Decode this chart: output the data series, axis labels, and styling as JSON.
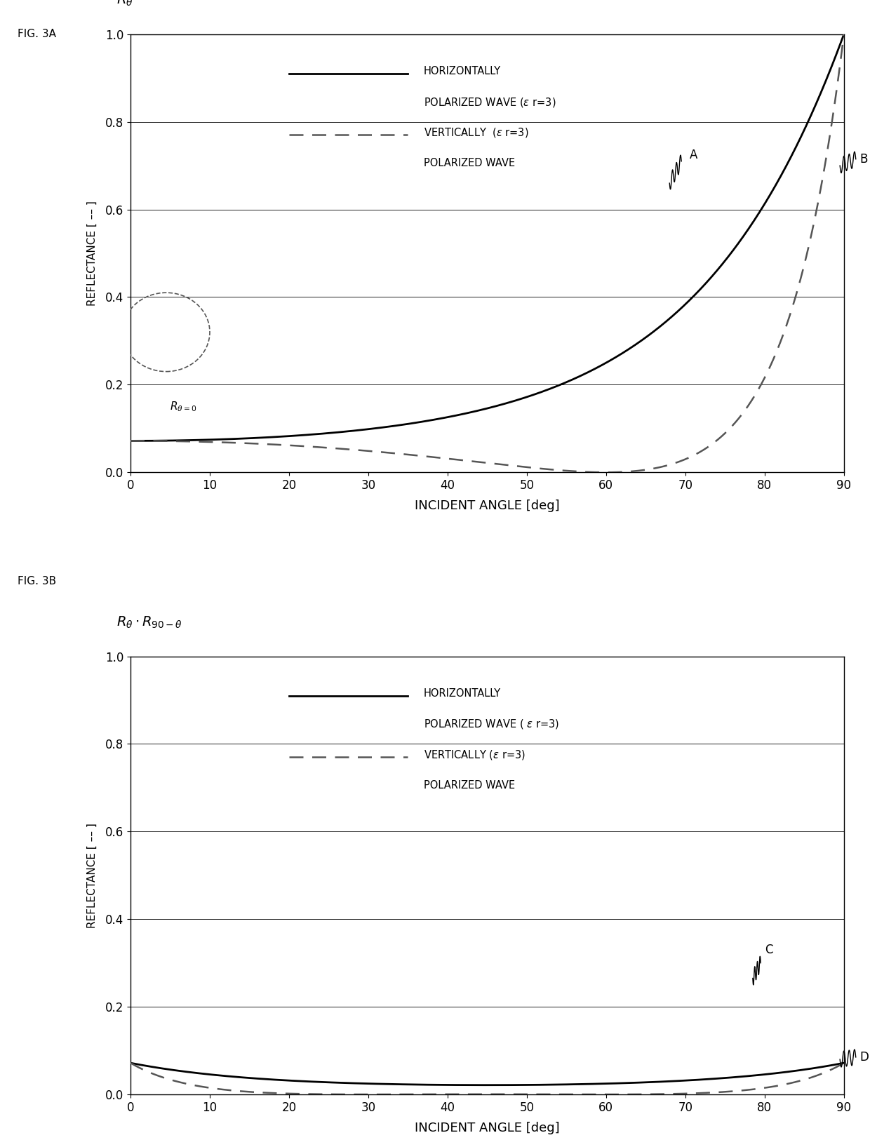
{
  "fig3a_label": "FIG. 3A",
  "fig3b_label": "FIG. 3B",
  "ylabel": "REFLECTANCE [ -- ]",
  "xlabel": "INCIDENT ANGLE [deg]",
  "epsilon_r": 3,
  "xlim": [
    0,
    90
  ],
  "ylim": [
    0,
    1
  ],
  "xticks": [
    0,
    10,
    20,
    30,
    40,
    50,
    60,
    70,
    80,
    90
  ],
  "yticks": [
    0,
    0.2,
    0.4,
    0.6,
    0.8,
    1
  ],
  "line_color_horiz": "#000000",
  "line_color_vert": "#666666",
  "background": "#ffffff",
  "legend_horiz_line1": "HORIZONTALLY",
  "legend_horiz_line2": "POLARIZED WAVE (ε r=3)",
  "legend_vert_line1": "VERTICALLY  (ε r=3)",
  "legend_vert_line2": "POLARIZED WAVE",
  "legend_vert_3b_line1": "VERTICALLY (ε r=3)",
  "legend_vert_3b_line2": "POLARIZED WAVE",
  "ann_R0": "R θ=0",
  "ann_A": "A",
  "ann_B": "B",
  "ann_C": "C",
  "ann_D": "D"
}
